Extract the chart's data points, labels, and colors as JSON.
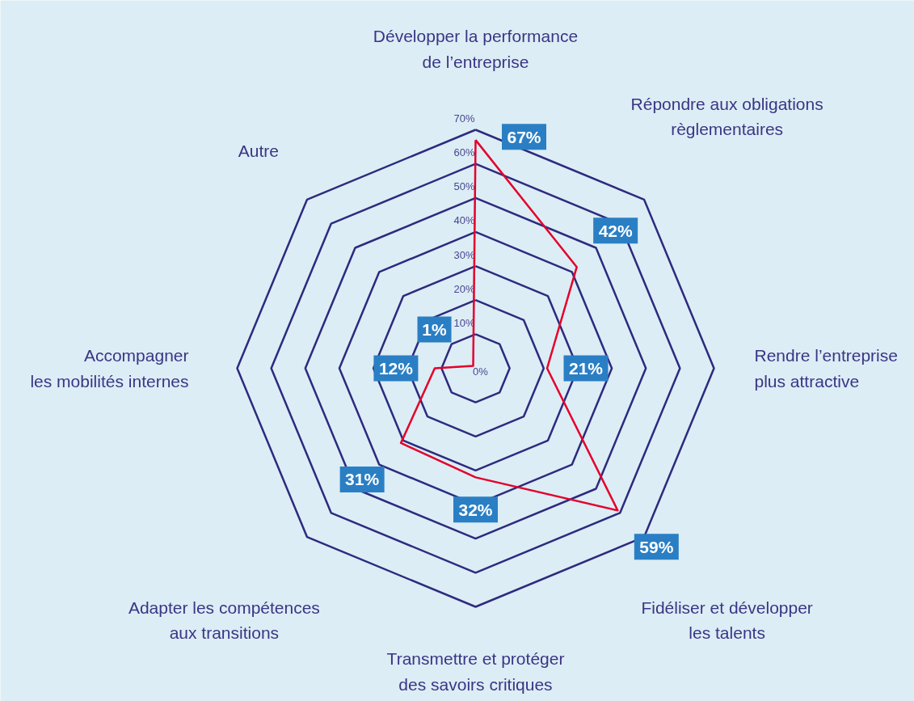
{
  "chart_data": {
    "type": "radar",
    "categories": [
      "Développer la performance\nde l’entreprise",
      "Répondre aux obligations\nrèglementaires",
      "Rendre l’entreprise\nplus attractive",
      "Fidéliser et développer\nles talents",
      "Transmettre et protéger\ndes savoirs critiques",
      "Adapter les compétences\naux transitions",
      "Accompagner\nles mobilités internes",
      "Autre"
    ],
    "series": [
      {
        "color": "#e4002b",
        "values": [
          67,
          42,
          21,
          59,
          32,
          31,
          12,
          1
        ],
        "value_labels": [
          "67%",
          "42%",
          "21%",
          "59%",
          "32%",
          "31%",
          "12%",
          "1%"
        ]
      }
    ],
    "ylim": [
      0,
      70
    ],
    "yticks": [
      {
        "value": 0,
        "label": "0%"
      },
      {
        "value": 10,
        "label": "10%"
      },
      {
        "value": 20,
        "label": "20%"
      },
      {
        "value": 30,
        "label": "30%"
      },
      {
        "value": 40,
        "label": "40%"
      },
      {
        "value": 50,
        "label": "50%"
      },
      {
        "value": 60,
        "label": "60%"
      },
      {
        "value": 70,
        "label": "70%"
      }
    ],
    "grid": true,
    "marker": "none",
    "line_style": "solid"
  }
}
